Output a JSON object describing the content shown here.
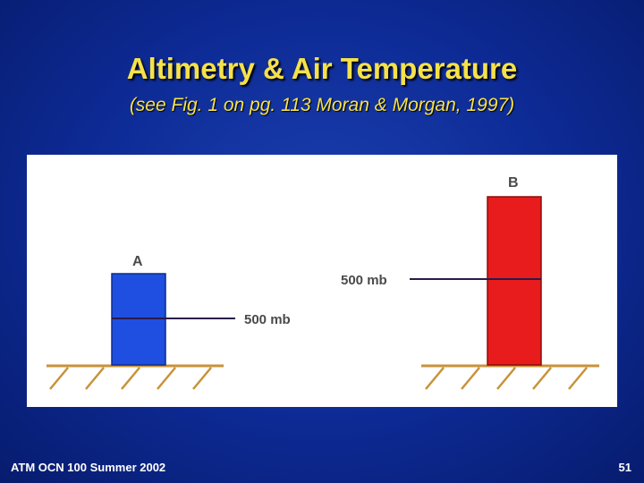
{
  "slide": {
    "title": "Altimetry & Air Temperature",
    "subtitle": "(see Fig. 1 on pg. 113 Moran & Morgan, 1997)",
    "footer_left": "ATM OCN 100 Summer 2002",
    "page_number": "51"
  },
  "diagram": {
    "column_a": {
      "label": "A",
      "pressure_label": "500 mb",
      "color": "#1f4fe0"
    },
    "column_b": {
      "label": "B",
      "pressure_label": "500 mb",
      "color": "#e81c1c"
    },
    "ground_color": "#c8923a",
    "line_color": "#2a1a4a"
  }
}
